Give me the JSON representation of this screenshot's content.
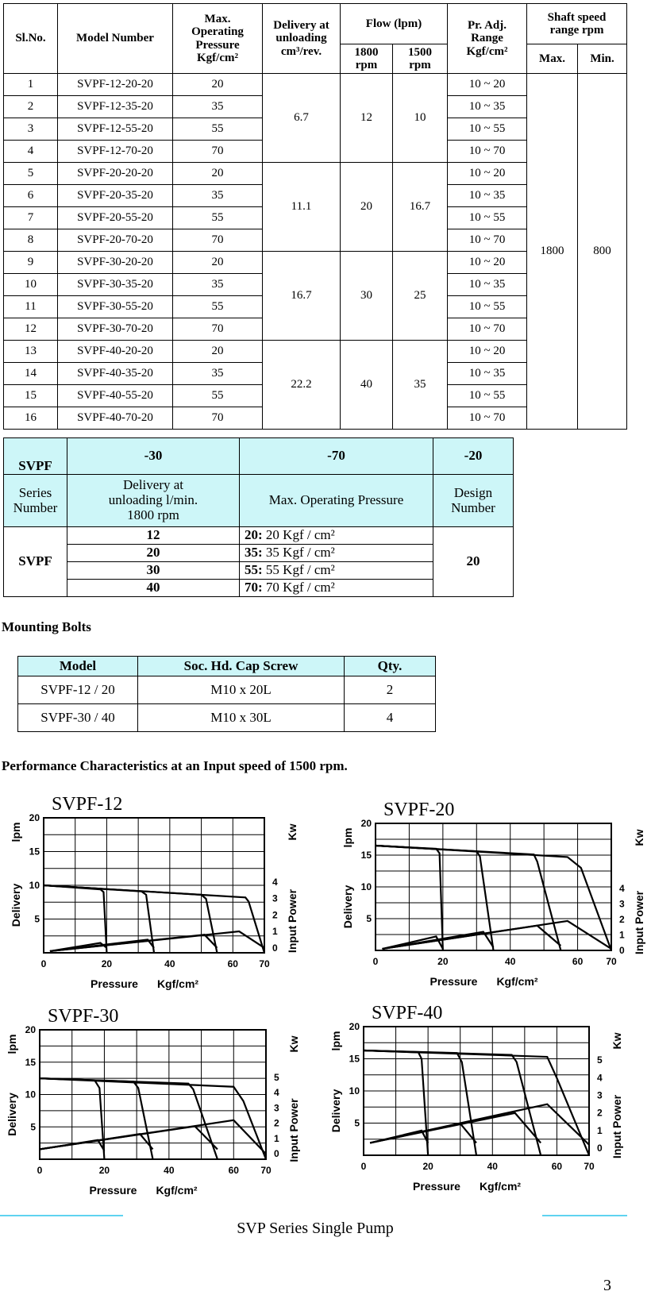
{
  "spec_table": {
    "headers": {
      "sl_no": "Sl.No.",
      "model": "Model Number",
      "max_pressure": [
        "Max.",
        "Operating",
        "Pressure",
        "Kgf/cm²"
      ],
      "delivery": [
        "Delivery at",
        "unloading",
        "cm³/rev."
      ],
      "flow": "Flow (lpm)",
      "flow_1800": [
        "1800",
        "rpm"
      ],
      "flow_1500": [
        "1500",
        "rpm"
      ],
      "range": [
        "Pr. Adj.",
        "Range",
        "Kgf/cm²"
      ],
      "shaft": [
        "Shaft speed",
        "range rpm"
      ],
      "shaft_max": "Max.",
      "shaft_min": "Min."
    },
    "rows": [
      [
        "1",
        "SVPF-12-20-20",
        "20",
        "10 ~ 20"
      ],
      [
        "2",
        "SVPF-12-35-20",
        "35",
        "10 ~ 35"
      ],
      [
        "3",
        "SVPF-12-55-20",
        "55",
        "10 ~ 55"
      ],
      [
        "4",
        "SVPF-12-70-20",
        "70",
        "10 ~ 70"
      ],
      [
        "5",
        "SVPF-20-20-20",
        "20",
        "10 ~ 20"
      ],
      [
        "6",
        "SVPF-20-35-20",
        "35",
        "10 ~ 35"
      ],
      [
        "7",
        "SVPF-20-55-20",
        "55",
        "10 ~ 55"
      ],
      [
        "8",
        "SVPF-20-70-20",
        "70",
        "10 ~ 70"
      ],
      [
        "9",
        "SVPF-30-20-20",
        "20",
        "10 ~ 20"
      ],
      [
        "10",
        "SVPF-30-35-20",
        "35",
        "10 ~ 35"
      ],
      [
        "11",
        "SVPF-30-55-20",
        "55",
        "10 ~ 55"
      ],
      [
        "12",
        "SVPF-30-70-20",
        "70",
        "10 ~ 70"
      ],
      [
        "13",
        "SVPF-40-20-20",
        "20",
        "10 ~ 20"
      ],
      [
        "14",
        "SVPF-40-35-20",
        "35",
        "10 ~ 35"
      ],
      [
        "15",
        "SVPF-40-55-20",
        "55",
        "10 ~ 55"
      ],
      [
        "16",
        "SVPF-40-70-20",
        "70",
        "10 ~ 70"
      ]
    ],
    "groups": [
      {
        "delivery": "6.7",
        "flow_1800": "12",
        "flow_1500": "10"
      },
      {
        "delivery": "11.1",
        "flow_1800": "20",
        "flow_1500": "16.7"
      },
      {
        "delivery": "16.7",
        "flow_1800": "30",
        "flow_1500": "25"
      },
      {
        "delivery": "22.2",
        "flow_1800": "40",
        "flow_1500": "35"
      }
    ],
    "shaft_max": "1800",
    "shaft_min": "800"
  },
  "code_table": {
    "head": [
      "SVPF",
      "-30",
      "-70",
      "-20"
    ],
    "labels": [
      [
        "Series",
        "Number"
      ],
      [
        "Delivery at",
        "unloading l/min.",
        "1800 rpm"
      ],
      [
        "Max. Operating Pressure"
      ],
      [
        "Design",
        "Number"
      ]
    ],
    "series": "SVPF",
    "deliveries": [
      "12",
      "20",
      "30",
      "40"
    ],
    "pressures": [
      {
        "code": "20:",
        "text": " 20 Kgf / cm²"
      },
      {
        "code": "35:",
        "text": " 35 Kgf / cm²"
      },
      {
        "code": "55:",
        "text": " 55 Kgf / cm²"
      },
      {
        "code": "70:",
        "text": " 70 Kgf / cm²"
      }
    ],
    "design": "20"
  },
  "bolts": {
    "heading": "Mounting Bolts",
    "headers": [
      "Model",
      "Soc. Hd. Cap Screw",
      "Qty."
    ],
    "rows": [
      [
        "SVPF-12 / 20",
        "M10 x 20L",
        "2"
      ],
      [
        "SVPF-30 / 40",
        "M10 x 30L",
        "4"
      ]
    ]
  },
  "performance": {
    "heading": "Performance Characteristics at an Input speed of 1500 rpm.",
    "charts": [
      {
        "title": "SVPF-12",
        "xlabel": "Pressure",
        "xunit": "Kgf/cm²",
        "ylabel": "Delivery",
        "yunit": "lpm",
        "y2label": "Input Power",
        "y2unit": "Kw",
        "xlim": [
          0,
          70
        ],
        "ylim": [
          0,
          20
        ],
        "y2lim": [
          -0.3,
          7.9
        ],
        "xticks": [
          0,
          20,
          40,
          60,
          70
        ],
        "yticks": [
          5,
          10,
          15,
          20
        ],
        "y2ticks": [
          0,
          1,
          2,
          3,
          4
        ],
        "grid_x": [
          10,
          20,
          30,
          40,
          50,
          60
        ],
        "grid_y": [
          2.5,
          5,
          7.5,
          10,
          12.5,
          15,
          17.5
        ],
        "delivery": [
          [
            [
              0,
              10
            ],
            [
              18,
              9.4
            ],
            [
              19,
              9
            ],
            [
              20,
              0
            ]
          ],
          [
            [
              0,
              10
            ],
            [
              31,
              9.1
            ],
            [
              32.5,
              8.6
            ],
            [
              35,
              0
            ]
          ],
          [
            [
              0,
              10
            ],
            [
              50,
              8.6
            ],
            [
              51.5,
              8
            ],
            [
              55,
              0
            ]
          ],
          [
            [
              0,
              10
            ],
            [
              64,
              8.2
            ],
            [
              65,
              7.6
            ],
            [
              70,
              0
            ]
          ]
        ],
        "power": [
          [
            [
              2,
              -0.2
            ],
            [
              18,
              0.3
            ],
            [
              20,
              0
            ]
          ],
          [
            [
              2,
              -0.2
            ],
            [
              33,
              0.5
            ],
            [
              35,
              0
            ]
          ],
          [
            [
              2,
              -0.2
            ],
            [
              51,
              0.8
            ],
            [
              55,
              0
            ]
          ],
          [
            [
              2,
              -0.2
            ],
            [
              62,
              1
            ],
            [
              70,
              0
            ]
          ]
        ]
      },
      {
        "title": "SVPF-20",
        "xlabel": "Pressure",
        "xunit": "Kgf/cm²",
        "ylabel": "Delivery",
        "yunit": "lpm",
        "y2label": "Input Power",
        "y2unit": "Kw",
        "xlim": [
          0,
          70
        ],
        "ylim": [
          0,
          20
        ],
        "y2lim": [
          0,
          8.2
        ],
        "xticks": [
          0,
          20,
          40,
          60,
          70
        ],
        "yticks": [
          5,
          10,
          15,
          20
        ],
        "y2ticks": [
          0,
          1,
          2,
          3,
          4
        ],
        "grid_x": [
          10,
          20,
          30,
          40,
          50,
          60
        ],
        "grid_y": [
          2.5,
          5,
          7.5,
          10,
          12.5,
          15,
          17.5
        ],
        "delivery": [
          [
            [
              0,
              16.5
            ],
            [
              18,
              16
            ],
            [
              19,
              15.3
            ],
            [
              20,
              0
            ]
          ],
          [
            [
              0,
              16.5
            ],
            [
              30,
              15.6
            ],
            [
              31,
              14.8
            ],
            [
              35,
              0
            ]
          ],
          [
            [
              0,
              16.5
            ],
            [
              47,
              15.1
            ],
            [
              48,
              14
            ],
            [
              55,
              0
            ]
          ],
          [
            [
              0,
              16.5
            ],
            [
              57,
              14.7
            ],
            [
              61,
              13
            ],
            [
              70,
              0
            ]
          ]
        ],
        "power": [
          [
            [
              2,
              0.1
            ],
            [
              18,
              0.9
            ],
            [
              20,
              0.1
            ]
          ],
          [
            [
              2,
              0.1
            ],
            [
              32,
              1.2
            ],
            [
              35,
              0.2
            ]
          ],
          [
            [
              2,
              0.1
            ],
            [
              48,
              1.6
            ],
            [
              55,
              0.3
            ]
          ],
          [
            [
              2,
              0.1
            ],
            [
              57,
              1.9
            ],
            [
              70,
              0.1
            ]
          ]
        ]
      },
      {
        "title": "SVPF-30",
        "xlabel": "Pressure",
        "xunit": "Kgf/cm²",
        "ylabel": "Delivery",
        "yunit": "lpm",
        "y2label": "Input Power",
        "y2unit": "Kw",
        "xlim": [
          0,
          70
        ],
        "ylim": [
          0,
          20
        ],
        "y2lim": [
          -0.35,
          8.1
        ],
        "xticks": [
          0,
          20,
          40,
          60,
          70
        ],
        "yticks": [
          5,
          10,
          15,
          20
        ],
        "y2ticks": [
          0,
          1,
          2,
          3,
          4,
          5
        ],
        "grid_x": [
          10,
          20,
          30,
          40,
          50,
          60
        ],
        "grid_y": [
          2.5,
          5,
          7.5,
          10,
          12.5,
          15,
          17.5
        ],
        "delivery": [
          [
            [
              0,
              12.5
            ],
            [
              17,
              12.2
            ],
            [
              18.5,
              11
            ],
            [
              20,
              0
            ]
          ],
          [
            [
              0,
              12.5
            ],
            [
              29,
              12
            ],
            [
              30.5,
              11
            ],
            [
              35,
              0
            ]
          ],
          [
            [
              0,
              12.5
            ],
            [
              46,
              11.7
            ],
            [
              47.5,
              10.8
            ],
            [
              55,
              0
            ]
          ],
          [
            [
              0,
              12.5
            ],
            [
              60,
              11.2
            ],
            [
              63,
              9
            ],
            [
              70,
              0
            ]
          ]
        ],
        "power": [
          [
            [
              0,
              0.3
            ],
            [
              18,
              0.9
            ],
            [
              20,
              0.2
            ]
          ],
          [
            [
              0,
              0.3
            ],
            [
              31,
              1.3
            ],
            [
              35,
              0.3
            ]
          ],
          [
            [
              0,
              0.3
            ],
            [
              48,
              1.8
            ],
            [
              55,
              0.3
            ]
          ],
          [
            [
              0,
              0.3
            ],
            [
              60,
              2.2
            ],
            [
              70,
              0
            ]
          ]
        ]
      },
      {
        "title": "SVPF-40",
        "xlabel": "Pressure",
        "xunit": "Kgf/cm²",
        "ylabel": "Delivery",
        "yunit": "lpm",
        "y2label": "Input Power",
        "y2unit": "Kw",
        "xlim": [
          0,
          70
        ],
        "ylim": [
          0,
          20
        ],
        "y2lim": [
          -0.4,
          6.9
        ],
        "xticks": [
          0,
          20,
          40,
          60,
          70
        ],
        "yticks": [
          5,
          10,
          15,
          20
        ],
        "y2ticks": [
          0,
          1,
          2,
          3,
          4,
          5
        ],
        "grid_x": [
          10,
          20,
          30,
          40,
          50,
          60
        ],
        "grid_y": [
          2.5,
          5,
          7.5,
          10,
          12.5,
          15,
          17.5
        ],
        "delivery": [
          [
            [
              0,
              16.3
            ],
            [
              17,
              16
            ],
            [
              18,
              15
            ],
            [
              20,
              0
            ]
          ],
          [
            [
              0,
              16.3
            ],
            [
              29,
              15.9
            ],
            [
              30.5,
              14.5
            ],
            [
              35,
              0
            ]
          ],
          [
            [
              0,
              16.3
            ],
            [
              46,
              15.6
            ],
            [
              47.5,
              14.5
            ],
            [
              55,
              0
            ]
          ],
          [
            [
              0,
              16.3
            ],
            [
              57,
              15.3
            ],
            [
              60,
              12
            ],
            [
              70,
              0
            ]
          ]
        ],
        "power": [
          [
            [
              2,
              0.3
            ],
            [
              18,
              1
            ],
            [
              20,
              0.3
            ]
          ],
          [
            [
              2,
              0.3
            ],
            [
              30,
              1.4
            ],
            [
              35,
              0.3
            ]
          ],
          [
            [
              2,
              0.3
            ],
            [
              47,
              2
            ],
            [
              55,
              0.3
            ]
          ],
          [
            [
              2,
              0.3
            ],
            [
              57,
              2.5
            ],
            [
              70,
              0.2
            ]
          ]
        ]
      }
    ]
  },
  "footer": {
    "title": "SVP Series Single Pump",
    "page": "3"
  }
}
